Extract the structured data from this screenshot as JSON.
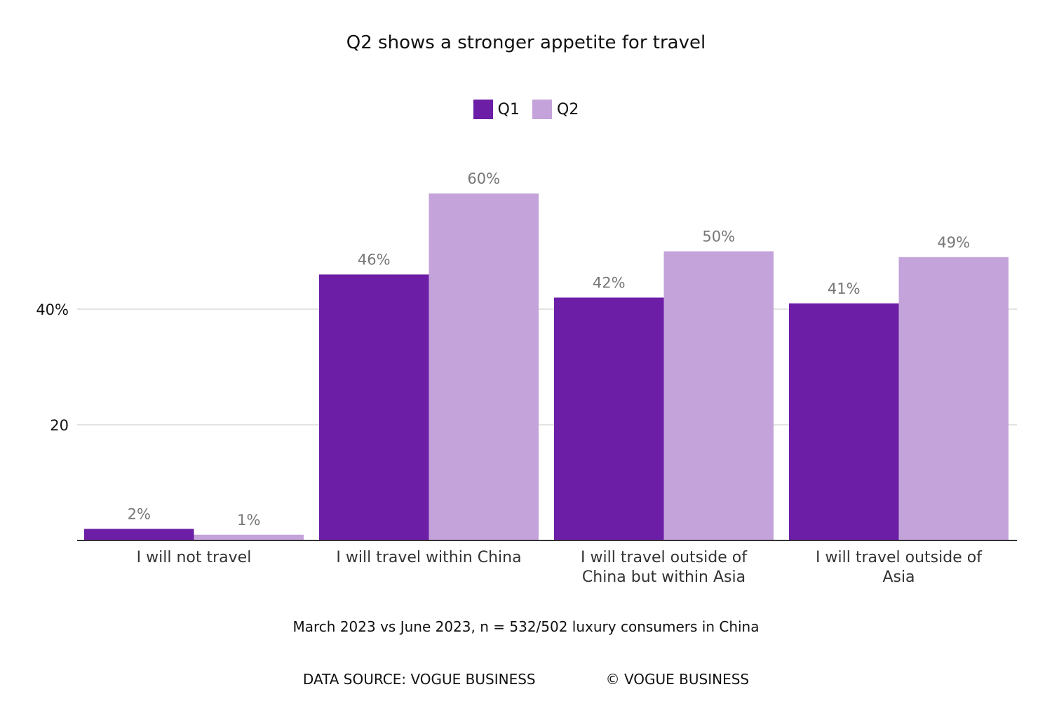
{
  "chart_data": {
    "type": "bar",
    "title": "Q2 shows a stronger appetite for travel",
    "categories": [
      [
        "I will not travel"
      ],
      [
        "I will travel within China"
      ],
      [
        "I will travel outside of",
        "China but within Asia"
      ],
      [
        "I will travel outside of",
        "Asia"
      ]
    ],
    "series": [
      {
        "name": "Q1",
        "color": "#6d1ea6",
        "values": [
          2,
          46,
          42,
          41
        ],
        "labels": [
          "2%",
          "46%",
          "42%",
          "41%"
        ]
      },
      {
        "name": "Q2",
        "color": "#c4a3da",
        "values": [
          1,
          60,
          50,
          49
        ],
        "labels": [
          "1%",
          "60%",
          "50%",
          "49%"
        ]
      }
    ],
    "yticks": [
      {
        "value": 20,
        "label": "20"
      },
      {
        "value": 40,
        "label": "40%"
      }
    ],
    "ylim": [
      0,
      65
    ],
    "grid": true,
    "legend": "top-center",
    "xlabel": "",
    "ylabel": ""
  },
  "note": "March 2023 vs June 2023, n = 532/502 luxury consumers in China",
  "footer": {
    "source": "DATA SOURCE: VOGUE BUSINESS",
    "copyright": "© VOGUE BUSINESS"
  }
}
